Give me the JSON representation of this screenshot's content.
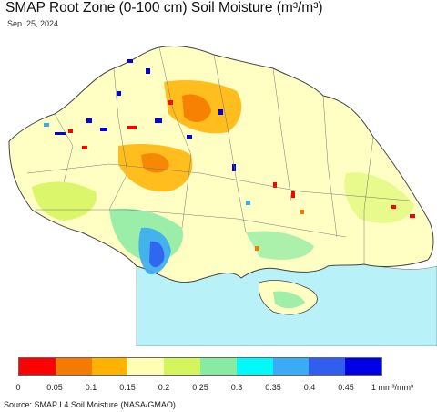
{
  "title": "SMAP Root Zone (0-100 cm) Soil Moisture (m³/m³)",
  "date": "Sep. 25, 2024",
  "source": "Source: SMAP L4 Soil Moisture (NASA/GMAO)",
  "legend": {
    "colors": [
      "#ff0000",
      "#f57a00",
      "#ffb300",
      "#ffffb3",
      "#d5f55c",
      "#88eba2",
      "#00fafa",
      "#3aabf5",
      "#2f5ef0",
      "#0000e6"
    ],
    "ticks": [
      "0",
      "0.05",
      "0.1",
      "0.15",
      "0.2",
      "0.25",
      "0.3",
      "0.35",
      "0.4",
      "0.45"
    ],
    "unit": "1 mm³/mm³"
  },
  "map": {
    "sea_color": "#b8f2f8",
    "land_color": "#ffffc4",
    "neighbor_color": "#ffffff",
    "border_color": "#555555"
  }
}
